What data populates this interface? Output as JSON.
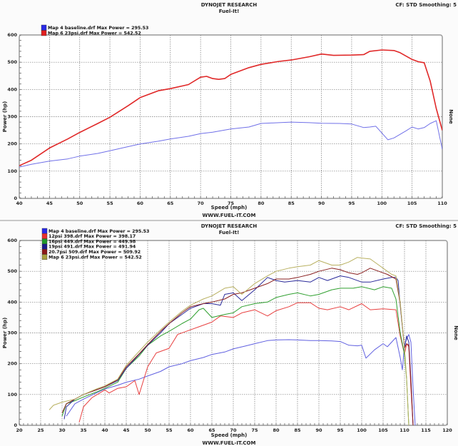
{
  "top_panel": {
    "header": {
      "title": "DYNOJET RESEARCH",
      "subtitle": "Fuel-It!",
      "right_info": "CF: STD  Smoothing: 5"
    },
    "xlabel": "Speed (mph)",
    "ylabel": "Power (hp)",
    "right_label": "None",
    "footer": "WWW.FUEL-IT.COM",
    "legend": [
      {
        "label": "Map 4 baseline.drf Max Power = 295.53",
        "color": "#2a2ae6"
      },
      {
        "label": "Map 6 23psi.drf Max Power = 542.52",
        "color": "#e02020"
      }
    ]
  },
  "bottom_panel": {
    "header": {
      "title": "DYNOJET RESEARCH",
      "subtitle": "Fuel-It!",
      "right_info": "CF: STD  Smoothing: 5"
    },
    "xlabel": "Speed (mph)",
    "ylabel": "Power (hp)",
    "right_label": "None",
    "footer": "WWW.FUEL-IT.COM",
    "legend": [
      {
        "label": "Map 4 baseline.drf Max Power = 295.53",
        "color": "#2a2ae6"
      },
      {
        "label": "12psi 398.drf Max Power = 398.17",
        "color": "#e83030"
      },
      {
        "label": "16psi 449.drf Max Power = 449.98",
        "color": "#1f9a2a"
      },
      {
        "label": "19psi 491.drf Max Power = 491.94",
        "color": "#1a1a8a"
      },
      {
        "label": "20.7psi 509.drf Max Power = 509.92",
        "color": "#8a1a1a"
      },
      {
        "label": "Map 6 23psi.drf Max Power = 542.52",
        "color": "#a8a040"
      }
    ]
  },
  "chart_data": [
    {
      "type": "line",
      "title": "DYNOJET RESEARCH - Fuel-It!",
      "xlabel": "Speed (mph)",
      "ylabel": "Power (hp)",
      "xlim": [
        40,
        110
      ],
      "ylim": [
        0,
        600
      ],
      "xticks": [
        40,
        45,
        50,
        55,
        60,
        65,
        70,
        75,
        80,
        85,
        90,
        95,
        100,
        105,
        110
      ],
      "yticks": [
        0,
        100,
        200,
        300,
        400,
        500,
        600
      ],
      "grid": true,
      "legend_position": "upper-left",
      "series": [
        {
          "name": "Map 4 baseline.drf Max Power = 295.53",
          "color": "#7070e8",
          "width": 1,
          "x": [
            40,
            42,
            45,
            48,
            50,
            53,
            55,
            58,
            60,
            63,
            65,
            68,
            70,
            72,
            75,
            78,
            80,
            83,
            85,
            88,
            90,
            93,
            95,
            97,
            98,
            99,
            100,
            101,
            102,
            104,
            105,
            106,
            107,
            108,
            109,
            110
          ],
          "y": [
            115,
            125,
            137,
            145,
            155,
            165,
            175,
            190,
            200,
            210,
            218,
            228,
            238,
            243,
            255,
            262,
            275,
            278,
            280,
            278,
            276,
            275,
            273,
            260,
            262,
            265,
            240,
            215,
            222,
            248,
            262,
            255,
            260,
            275,
            285,
            180
          ]
        },
        {
          "name": "Map 6 23psi.drf Max Power = 542.52",
          "color": "#e02828",
          "width": 1.6,
          "x": [
            40,
            42,
            45,
            48,
            50,
            53,
            55,
            58,
            60,
            63,
            65,
            68,
            70,
            71,
            72,
            73,
            74,
            75,
            78,
            80,
            83,
            85,
            88,
            90,
            92,
            95,
            97,
            98,
            100,
            102,
            103,
            105,
            106,
            107,
            108,
            109,
            110
          ],
          "y": [
            120,
            140,
            185,
            218,
            242,
            275,
            298,
            340,
            370,
            395,
            403,
            418,
            445,
            448,
            440,
            437,
            440,
            455,
            480,
            492,
            503,
            508,
            520,
            530,
            525,
            526,
            528,
            540,
            545,
            543,
            535,
            510,
            502,
            498,
            430,
            330,
            250
          ]
        }
      ]
    },
    {
      "type": "line",
      "title": "DYNOJET RESEARCH - Fuel-It!",
      "xlabel": "Speed (mph)",
      "ylabel": "Power (hp)",
      "xlim": [
        20,
        120
      ],
      "ylim": [
        0,
        600
      ],
      "xticks": [
        20,
        25,
        30,
        35,
        40,
        45,
        50,
        55,
        60,
        65,
        70,
        75,
        80,
        85,
        90,
        95,
        100,
        105,
        110,
        115,
        120
      ],
      "yticks": [
        0,
        100,
        200,
        300,
        400,
        500,
        600
      ],
      "grid": true,
      "legend_position": "upper-left",
      "series": [
        {
          "name": "Map 4 baseline.drf Max Power = 295.53",
          "color": "#6060e0",
          "x": [
            31,
            33,
            35,
            38,
            40,
            43,
            45,
            48,
            50,
            53,
            55,
            58,
            60,
            63,
            65,
            68,
            70,
            73,
            75,
            78,
            80,
            83,
            85,
            88,
            90,
            93,
            95,
            97,
            99,
            100,
            101,
            103,
            105,
            106,
            108,
            109,
            109.5,
            110,
            110.5,
            111,
            111.5,
            112,
            112.5
          ],
          "y": [
            30,
            70,
            85,
            105,
            118,
            130,
            140,
            150,
            160,
            175,
            190,
            200,
            210,
            220,
            230,
            238,
            248,
            258,
            265,
            275,
            277,
            278,
            277,
            275,
            275,
            274,
            272,
            260,
            258,
            260,
            218,
            245,
            265,
            255,
            285,
            220,
            180,
            260,
            280,
            295,
            270,
            120,
            0
          ]
        },
        {
          "name": "12psi 398.drf Max Power = 398.17",
          "color": "#e84040",
          "x": [
            34,
            35,
            37,
            40,
            41,
            43,
            45,
            47,
            48,
            50,
            52,
            55,
            57,
            60,
            62,
            65,
            67,
            70,
            72,
            75,
            78,
            80,
            83,
            85,
            88,
            90,
            92,
            95,
            97,
            100,
            102,
            105,
            108,
            109,
            110,
            110.5,
            111,
            111.5,
            112
          ],
          "y": [
            10,
            60,
            90,
            115,
            105,
            120,
            125,
            145,
            100,
            190,
            235,
            250,
            295,
            310,
            320,
            335,
            355,
            350,
            365,
            375,
            355,
            372,
            385,
            398,
            398,
            380,
            375,
            385,
            375,
            395,
            375,
            378,
            375,
            290,
            230,
            265,
            255,
            120,
            0
          ]
        },
        {
          "name": "16psi 449.drf Max Power = 449.98",
          "color": "#30a030",
          "x": [
            30,
            31,
            33,
            35,
            38,
            40,
            43,
            45,
            48,
            50,
            53,
            55,
            58,
            60,
            62,
            63,
            65,
            68,
            70,
            72,
            75,
            78,
            80,
            83,
            85,
            88,
            90,
            93,
            95,
            98,
            100,
            103,
            105,
            107,
            108,
            109,
            110,
            110.5,
            111
          ],
          "y": [
            30,
            70,
            80,
            92,
            108,
            120,
            140,
            185,
            225,
            260,
            290,
            305,
            330,
            345,
            375,
            380,
            350,
            360,
            365,
            385,
            395,
            400,
            415,
            425,
            430,
            420,
            425,
            440,
            445,
            445,
            450,
            440,
            450,
            445,
            410,
            300,
            230,
            150,
            0
          ]
        },
        {
          "name": "19psi 491.drf Max Power = 491.94",
          "color": "#2a2a9a",
          "x": [
            30.5,
            31,
            33,
            35,
            38,
            40,
            43,
            45,
            48,
            50,
            53,
            55,
            58,
            60,
            63,
            65,
            67,
            68,
            70,
            72,
            75,
            78,
            80,
            82,
            85,
            88,
            90,
            92,
            95,
            97,
            100,
            102,
            105,
            107,
            108,
            108.5,
            109,
            110,
            110.5,
            111,
            111.5,
            112
          ],
          "y": [
            20,
            60,
            85,
            100,
            115,
            125,
            145,
            185,
            230,
            260,
            300,
            330,
            360,
            380,
            395,
            395,
            390,
            425,
            430,
            405,
            440,
            480,
            470,
            465,
            470,
            465,
            480,
            470,
            485,
            480,
            465,
            465,
            475,
            480,
            480,
            470,
            390,
            250,
            290,
            270,
            150,
            0
          ]
        },
        {
          "name": "20.7psi 509.drf Max Power = 509.92",
          "color": "#8a2020",
          "x": [
            30,
            31,
            33,
            35,
            38,
            40,
            43,
            45,
            48,
            50,
            53,
            55,
            58,
            60,
            63,
            65,
            68,
            70,
            72,
            75,
            78,
            80,
            83,
            85,
            88,
            90,
            93,
            95,
            97,
            99,
            100,
            102,
            104,
            106,
            108,
            109,
            110,
            110.5,
            111,
            111.5,
            112
          ],
          "y": [
            40,
            70,
            85,
            100,
            115,
            125,
            148,
            190,
            232,
            262,
            305,
            330,
            365,
            385,
            395,
            400,
            410,
            425,
            430,
            445,
            460,
            475,
            475,
            480,
            490,
            500,
            510,
            505,
            495,
            490,
            495,
            510,
            500,
            490,
            475,
            395,
            250,
            265,
            260,
            140,
            0
          ]
        },
        {
          "name": "Map 6 23psi.drf Max Power = 542.52",
          "color": "#b8b060",
          "x": [
            27,
            28,
            30,
            33,
            35,
            38,
            40,
            43,
            45,
            48,
            50,
            53,
            55,
            58,
            60,
            63,
            65,
            68,
            70,
            72,
            75,
            78,
            80,
            83,
            85,
            88,
            90,
            93,
            95,
            97,
            99,
            100,
            102,
            104,
            106,
            107,
            108,
            109,
            110,
            110.5,
            111
          ],
          "y": [
            50,
            65,
            75,
            85,
            100,
            118,
            128,
            150,
            195,
            240,
            270,
            310,
            335,
            370,
            390,
            410,
            420,
            445,
            450,
            425,
            460,
            485,
            500,
            510,
            515,
            520,
            535,
            520,
            520,
            530,
            545,
            543,
            540,
            520,
            500,
            490,
            485,
            400,
            250,
            150,
            0
          ]
        }
      ]
    }
  ]
}
